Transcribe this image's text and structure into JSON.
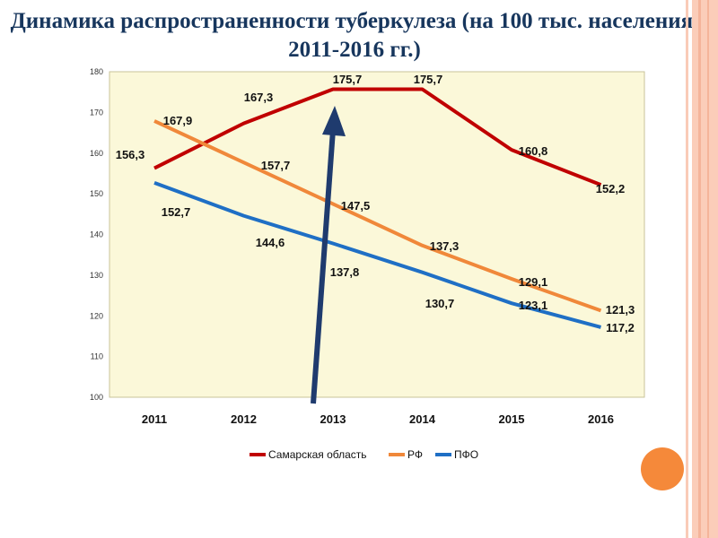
{
  "title": "Динамика распространенности туберкулеза (на 100 тыс. населения, 2011-2016 гг.)",
  "chart_data": {
    "type": "line",
    "title": "Динамика распространенности туберкулеза (на 100 тыс. населения, 2011-2016 гг.)",
    "categories": [
      "2011",
      "2012",
      "2013",
      "2014",
      "2015",
      "2016"
    ],
    "series": [
      {
        "name": "Самарская область",
        "color": "#c00000",
        "values": [
          156.3,
          167.3,
          175.7,
          175.7,
          160.8,
          152.2
        ],
        "labels": [
          "156,3",
          "167,3",
          "175,7",
          "175,7",
          "160,8",
          "152,2"
        ]
      },
      {
        "name": "РФ",
        "color": "#f0883a",
        "values": [
          167.9,
          157.7,
          147.5,
          137.3,
          129.1,
          121.3
        ],
        "labels": [
          "167,9",
          "157,7",
          "147,5",
          "137,3",
          "129,1",
          "121,3"
        ]
      },
      {
        "name": "ПФО",
        "color": "#1f6fc5",
        "values": [
          152.7,
          144.6,
          137.8,
          130.7,
          123.1,
          117.2
        ],
        "labels": [
          "152,7",
          "144,6",
          "137,8",
          "130,7",
          "123,1",
          "117,2"
        ]
      }
    ],
    "yticks": [
      "100",
      "110",
      "120",
      "130",
      "140",
      "150",
      "160",
      "170",
      "180"
    ],
    "ylim": [
      100,
      180
    ],
    "xlabel": "",
    "ylabel": "",
    "legend": "bottom",
    "plot_background": "#fbf8d9",
    "annotation": "arrow pointing to 2013"
  }
}
